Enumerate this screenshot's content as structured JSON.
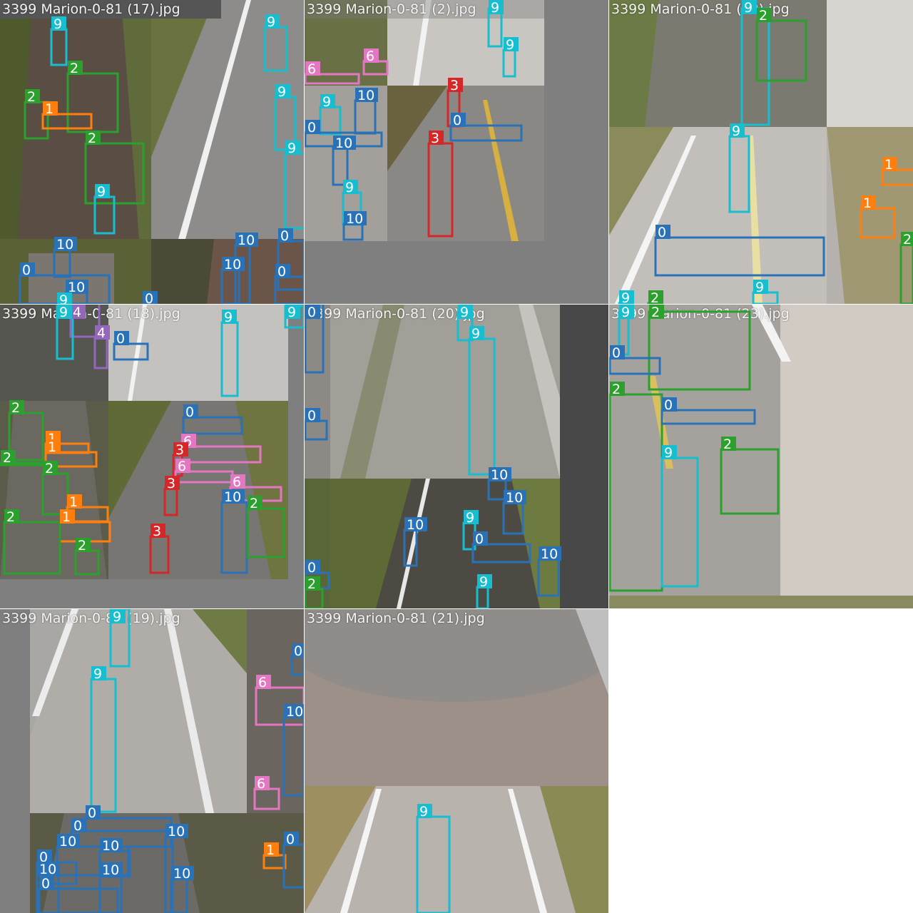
{
  "colors": {
    "0": "#2a72b8",
    "1": "#ff7f0e",
    "2": "#2ca02c",
    "3": "#d62728",
    "4": "#9467bd",
    "6": "#e377c2",
    "9": "#17becf",
    "10": "#2a72b8"
  },
  "tiles": [
    {
      "title": "3399 Marion-0-81 (17).jpg",
      "boxes": [
        {
          "c": "9",
          "l": "9"
        },
        {
          "c": "2",
          "l": "2"
        },
        {
          "c": "2",
          "l": "2"
        },
        {
          "c": "1",
          "l": "1"
        },
        {
          "c": "2",
          "l": "2"
        },
        {
          "c": "9",
          "l": "9"
        },
        {
          "c": "9",
          "l": "9"
        },
        {
          "c": "9",
          "l": "9"
        },
        {
          "c": "9",
          "l": "9"
        },
        {
          "c": "10",
          "l": "10"
        },
        {
          "c": "0",
          "l": "0"
        },
        {
          "c": "10",
          "l": "10"
        },
        {
          "c": "9",
          "l": "9"
        },
        {
          "c": "0",
          "l": "0"
        },
        {
          "c": "10",
          "l": "10"
        },
        {
          "c": "10",
          "l": "10"
        },
        {
          "c": "0",
          "l": "0"
        },
        {
          "c": "0",
          "l": "0"
        }
      ]
    },
    {
      "title": "3399 Marion-0-81 (2).jpg",
      "boxes": [
        {
          "c": "9",
          "l": "9"
        },
        {
          "c": "9",
          "l": "9"
        },
        {
          "c": "6",
          "l": "6"
        },
        {
          "c": "6",
          "l": "6"
        },
        {
          "c": "9",
          "l": "9"
        },
        {
          "c": "10",
          "l": "10"
        },
        {
          "c": "0",
          "l": "0"
        },
        {
          "c": "10",
          "l": "10"
        },
        {
          "c": "9",
          "l": "9"
        },
        {
          "c": "10",
          "l": "10"
        },
        {
          "c": "3",
          "l": "3"
        },
        {
          "c": "0",
          "l": "0"
        },
        {
          "c": "3",
          "l": "3"
        }
      ]
    },
    {
      "title": "3399 Marion-0-81 (22).jpg",
      "boxes": [
        {
          "c": "9",
          "l": "9"
        },
        {
          "c": "2",
          "l": "2"
        },
        {
          "c": "9",
          "l": "9"
        },
        {
          "c": "1",
          "l": "1"
        },
        {
          "c": "1",
          "l": "1"
        },
        {
          "c": "0",
          "l": "0"
        },
        {
          "c": "2",
          "l": "2"
        },
        {
          "c": "9",
          "l": "9"
        },
        {
          "c": "9",
          "l": "9"
        },
        {
          "c": "2",
          "l": "2"
        }
      ]
    },
    {
      "title": "3399 Marion-0-81 (18).jpg",
      "boxes": [
        {
          "c": "4",
          "l": "4"
        },
        {
          "c": "4",
          "l": "4"
        },
        {
          "c": "0",
          "l": "0"
        },
        {
          "c": "9",
          "l": "9"
        },
        {
          "c": "2",
          "l": "2"
        },
        {
          "c": "1",
          "l": "1"
        },
        {
          "c": "1",
          "l": "1"
        },
        {
          "c": "2",
          "l": "2"
        },
        {
          "c": "2",
          "l": "2"
        },
        {
          "c": "1",
          "l": "1"
        },
        {
          "c": "1",
          "l": "1"
        },
        {
          "c": "2",
          "l": "2"
        },
        {
          "c": "2",
          "l": "2"
        },
        {
          "c": "0",
          "l": "0"
        },
        {
          "c": "6",
          "l": "6"
        },
        {
          "c": "3",
          "l": "3"
        },
        {
          "c": "6",
          "l": "6"
        },
        {
          "c": "3",
          "l": "3"
        },
        {
          "c": "6",
          "l": "6"
        },
        {
          "c": "10",
          "l": "10"
        },
        {
          "c": "2",
          "l": "2"
        },
        {
          "c": "3",
          "l": "3"
        },
        {
          "c": "9",
          "l": "9"
        },
        {
          "c": "9",
          "l": "9"
        }
      ]
    },
    {
      "title": "3399 Marion-0-81 (20).jpg",
      "boxes": [
        {
          "c": "9",
          "l": "9"
        },
        {
          "c": "9",
          "l": "9"
        },
        {
          "c": "0",
          "l": "0"
        },
        {
          "c": "0",
          "l": "0"
        },
        {
          "c": "10",
          "l": "10"
        },
        {
          "c": "10",
          "l": "10"
        },
        {
          "c": "10",
          "l": "10"
        },
        {
          "c": "9",
          "l": "9"
        },
        {
          "c": "0",
          "l": "0"
        },
        {
          "c": "10",
          "l": "10"
        },
        {
          "c": "0",
          "l": "0"
        },
        {
          "c": "2",
          "l": "2"
        },
        {
          "c": "9",
          "l": "9"
        }
      ]
    },
    {
      "title": "3399 Marion-0-81 (23).jpg",
      "boxes": [
        {
          "c": "9",
          "l": "9"
        },
        {
          "c": "2",
          "l": "2"
        },
        {
          "c": "0",
          "l": "0"
        },
        {
          "c": "2",
          "l": "2"
        },
        {
          "c": "0",
          "l": "0"
        },
        {
          "c": "9",
          "l": "9"
        },
        {
          "c": "2",
          "l": "2"
        }
      ]
    },
    {
      "title": "3399 Marion-0-81 (19).jpg",
      "boxes": [
        {
          "c": "9",
          "l": "9"
        },
        {
          "c": "9",
          "l": "9"
        },
        {
          "c": "0",
          "l": "0"
        },
        {
          "c": "6",
          "l": "6"
        },
        {
          "c": "10",
          "l": "10"
        },
        {
          "c": "6",
          "l": "6"
        },
        {
          "c": "0",
          "l": "0"
        },
        {
          "c": "0",
          "l": "0"
        },
        {
          "c": "10",
          "l": "10"
        },
        {
          "c": "10",
          "l": "10"
        },
        {
          "c": "10",
          "l": "10"
        },
        {
          "c": "0",
          "l": "0"
        },
        {
          "c": "10",
          "l": "10"
        },
        {
          "c": "10",
          "l": "10"
        },
        {
          "c": "0",
          "l": "0"
        },
        {
          "c": "10",
          "l": "10"
        },
        {
          "c": "1",
          "l": "1"
        },
        {
          "c": "0",
          "l": "0"
        }
      ]
    },
    {
      "title": "3399 Marion-0-81 (21).jpg",
      "boxes": [
        {
          "c": "9",
          "l": "9"
        }
      ]
    }
  ]
}
